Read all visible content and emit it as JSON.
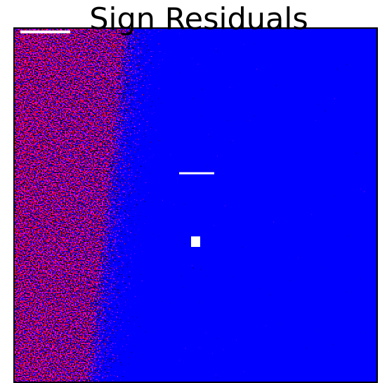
{
  "plot": {
    "title": "Sign Residuals"
  }
}
